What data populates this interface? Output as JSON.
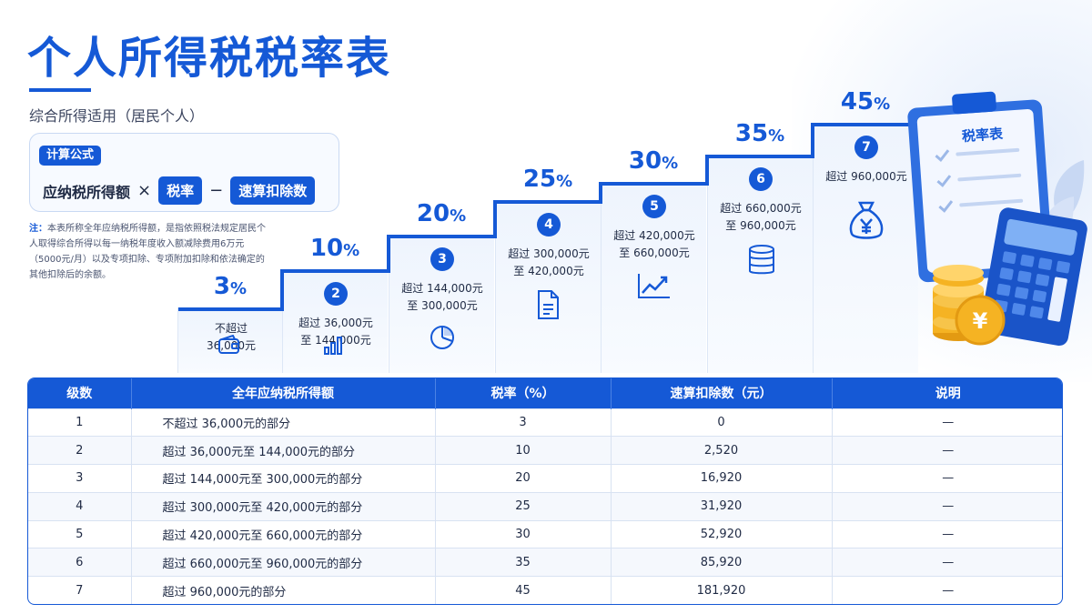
{
  "title": "个人所得税税率表",
  "subtitle": "综合所得适用（居民个人）",
  "formula": {
    "tag": "计算公式",
    "income": "应纳税所得额",
    "times": "×",
    "rate": "税率",
    "minus": "−",
    "deduction": "速算扣除数"
  },
  "note": {
    "label": "注：",
    "text": "本表所称全年应纳税所得额，是指依照税法规定居民个人取得综合所得以每一纳税年度收入额减除费用6万元（5000元/月）以及专项扣除、专项附加扣除和依法确定的其他扣除后的余额。"
  },
  "stairs": [
    {
      "level": "1",
      "rate": "3",
      "pct": "%",
      "line1": "不超过",
      "line2": "36,000元",
      "icon": "wallet-icon"
    },
    {
      "level": "2",
      "rate": "10",
      "pct": "%",
      "line1": "超过 36,000元",
      "line2": "至 144,000元",
      "icon": "bar-chart-icon"
    },
    {
      "level": "3",
      "rate": "20",
      "pct": "%",
      "line1": "超过 144,000元",
      "line2": "至 300,000元",
      "icon": "pie-chart-icon"
    },
    {
      "level": "4",
      "rate": "25",
      "pct": "%",
      "line1": "超过 300,000元",
      "line2": "至 420,000元",
      "icon": "document-icon"
    },
    {
      "level": "5",
      "rate": "30",
      "pct": "%",
      "line1": "超过 420,000元",
      "line2": "至 660,000元",
      "icon": "trend-up-icon"
    },
    {
      "level": "6",
      "rate": "35",
      "pct": "%",
      "line1": "超过 660,000元",
      "line2": "至 960,000元",
      "icon": "coin-stack-icon"
    },
    {
      "level": "7",
      "rate": "45",
      "pct": "%",
      "line1": "超过 960,000元",
      "line2": "",
      "icon": "money-bag-icon"
    }
  ],
  "illustration": {
    "clipboard_label": "税率表",
    "coin_symbol": "¥",
    "money_bag_symbol": "¥"
  },
  "table": {
    "headers": [
      "级数",
      "全年应纳税所得额",
      "税率（%）",
      "速算扣除数（元）",
      "说明"
    ],
    "rows": [
      [
        "1",
        "不超过 36,000元的部分",
        "3",
        "0",
        "—"
      ],
      [
        "2",
        "超过 36,000元至 144,000元的部分",
        "10",
        "2,520",
        "—"
      ],
      [
        "3",
        "超过 144,000元至 300,000元的部分",
        "20",
        "16,920",
        "—"
      ],
      [
        "4",
        "超过 300,000元至 420,000元的部分",
        "25",
        "31,920",
        "—"
      ],
      [
        "5",
        "超过 420,000元至 660,000元的部分",
        "30",
        "52,920",
        "—"
      ],
      [
        "6",
        "超过 660,000元至 960,000元的部分",
        "35",
        "85,920",
        "—"
      ],
      [
        "7",
        "超过 960,000元的部分",
        "45",
        "181,920",
        "—"
      ]
    ]
  },
  "colors": {
    "primary": "#1559d6",
    "coin": "#f5b323"
  }
}
